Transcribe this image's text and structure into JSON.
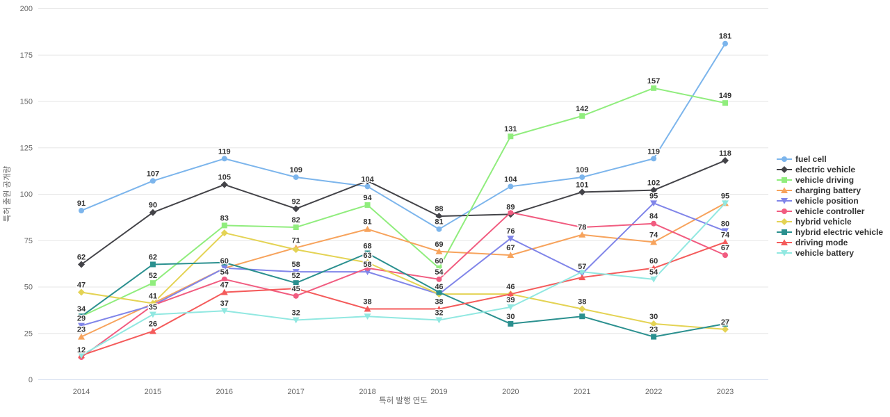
{
  "chart_data": {
    "type": "line",
    "title": "",
    "xlabel": "특허 발행 연도",
    "ylabel": "특허 출원 공개량",
    "categories": [
      "2014",
      "2015",
      "2016",
      "2017",
      "2018",
      "2019",
      "2020",
      "2021",
      "2022",
      "2023"
    ],
    "ylim": [
      0,
      200
    ],
    "y_ticks": [
      0,
      25,
      50,
      75,
      100,
      125,
      150,
      175,
      200
    ],
    "grid": true,
    "legend_position": "right",
    "series": [
      {
        "name": "fuel cell",
        "color": "#7cb5ec",
        "marker": "circle",
        "values": [
          91,
          107,
          119,
          109,
          104,
          81,
          104,
          109,
          119,
          181
        ]
      },
      {
        "name": "electric vehicle",
        "color": "#434348",
        "marker": "diamond",
        "values": [
          62,
          90,
          105,
          92,
          107,
          88,
          89,
          101,
          102,
          118
        ]
      },
      {
        "name": "vehicle driving",
        "color": "#90ed7d",
        "marker": "square",
        "values": [
          34,
          52,
          83,
          82,
          94,
          60,
          131,
          142,
          157,
          149
        ]
      },
      {
        "name": "charging battery",
        "color": "#f7a35c",
        "marker": "triangle",
        "values": [
          23,
          41,
          60,
          71,
          81,
          69,
          67,
          78,
          74,
          95
        ]
      },
      {
        "name": "vehicle position",
        "color": "#8085e9",
        "marker": "triangle-down",
        "values": [
          29,
          40,
          60,
          58,
          58,
          46,
          76,
          57,
          95,
          80
        ]
      },
      {
        "name": "vehicle controller",
        "color": "#f15c80",
        "marker": "circle",
        "values": [
          12,
          40,
          54,
          45,
          60,
          54,
          90,
          82,
          84,
          67
        ]
      },
      {
        "name": "hybrid vehicle",
        "color": "#e4d354",
        "marker": "diamond",
        "values": [
          47,
          41,
          79,
          70,
          63,
          46,
          46,
          38,
          30,
          27
        ]
      },
      {
        "name": "hybrid electric vehicle",
        "color": "#2b908f",
        "marker": "square",
        "values": [
          34,
          62,
          63,
          52,
          68,
          47,
          30,
          34,
          23,
          30
        ]
      },
      {
        "name": "driving mode",
        "color": "#f45b5b",
        "marker": "triangle",
        "values": [
          13,
          26,
          47,
          49,
          38,
          38,
          46,
          55,
          60,
          74
        ]
      },
      {
        "name": "vehicle battery",
        "color": "#91e8e1",
        "marker": "triangle-down",
        "values": [
          13,
          35,
          37,
          32,
          34,
          32,
          39,
          58,
          54,
          95
        ]
      }
    ]
  }
}
